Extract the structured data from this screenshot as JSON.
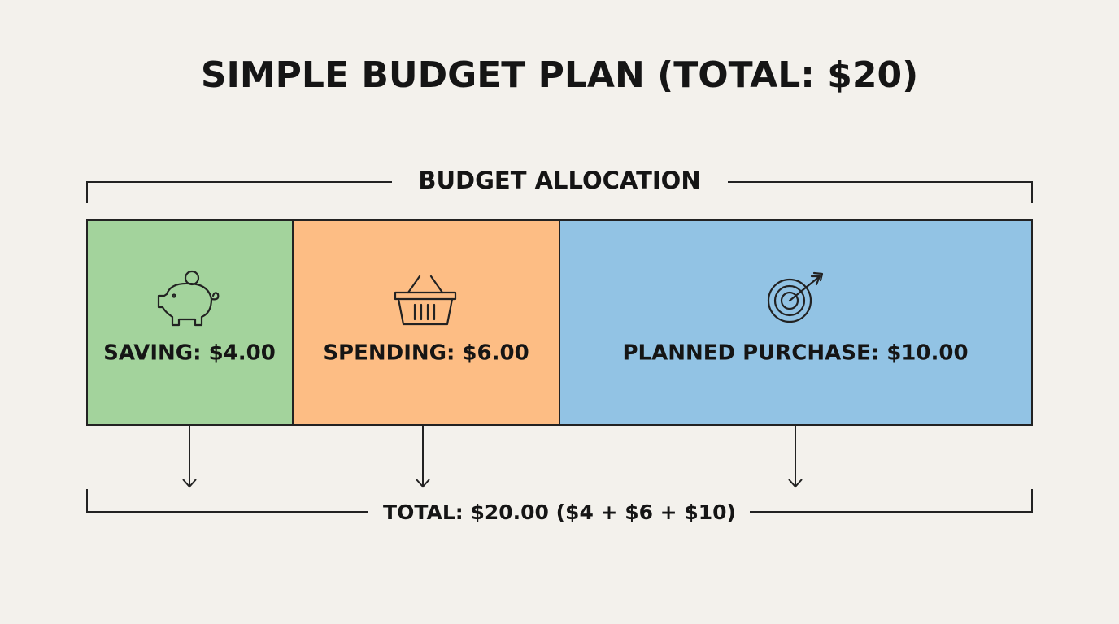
{
  "title": "SIMPLE BUDGET PLAN (TOTAL: $20)",
  "allocation_label": "BUDGET ALLOCATION",
  "segments": [
    {
      "label": "SAVING: $4.00",
      "color": "#a3d39c"
    },
    {
      "label": "SPENDING: $6.00",
      "color": "#fdbd84"
    },
    {
      "label": "PLANNED PURCHASE: $10.00",
      "color": "#92c3e4"
    }
  ],
  "total_label": "TOTAL: $20.00 ($4 + $6 + $10)"
}
